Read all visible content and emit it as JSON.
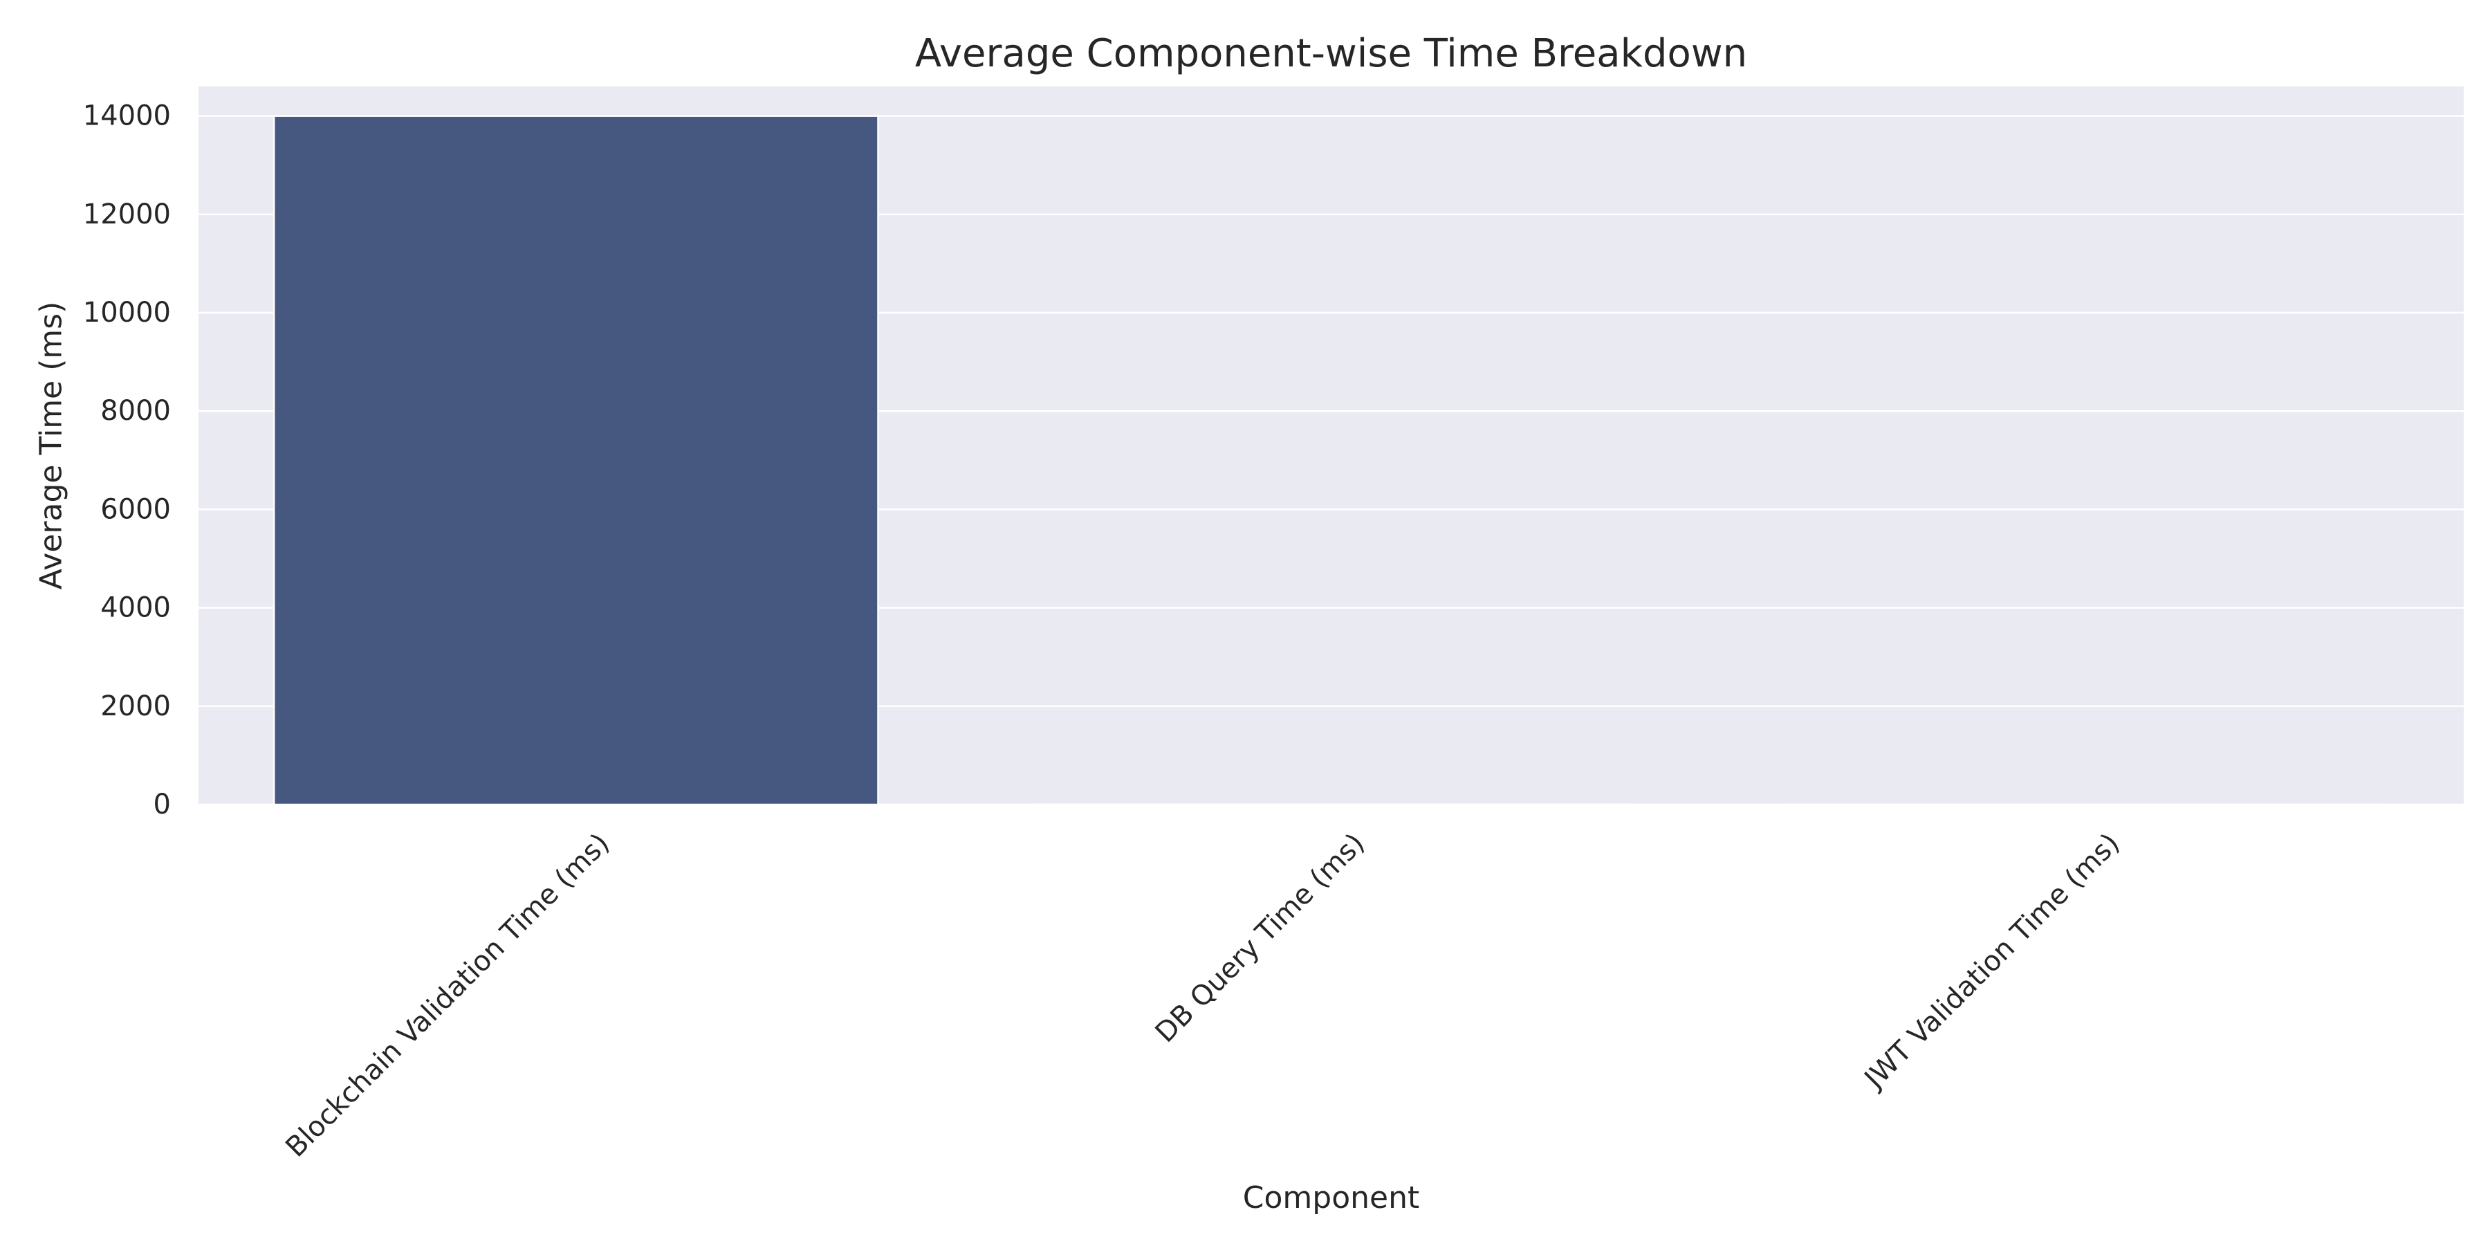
{
  "chart_data": {
    "type": "bar",
    "title": "Average Component-wise Time Breakdown",
    "xlabel": "Component",
    "ylabel": "Average Time (ms)",
    "categories": [
      "Blockchain Validation Time (ms)",
      "DB Query Time (ms)",
      "JWT Validation Time (ms)"
    ],
    "values": [
      14000,
      4,
      2
    ],
    "ylim": [
      0,
      14600
    ],
    "yticks": [
      0,
      2000,
      4000,
      6000,
      8000,
      10000,
      12000,
      14000
    ],
    "ytick_labels": [
      "0",
      "2000",
      "4000",
      "6000",
      "8000",
      "10000",
      "12000",
      "14000"
    ],
    "grid": true,
    "legend": "none",
    "colors": {
      "bar": "#46587f",
      "plot_background": "#eaeaf2",
      "grid": "#ffffff"
    }
  }
}
